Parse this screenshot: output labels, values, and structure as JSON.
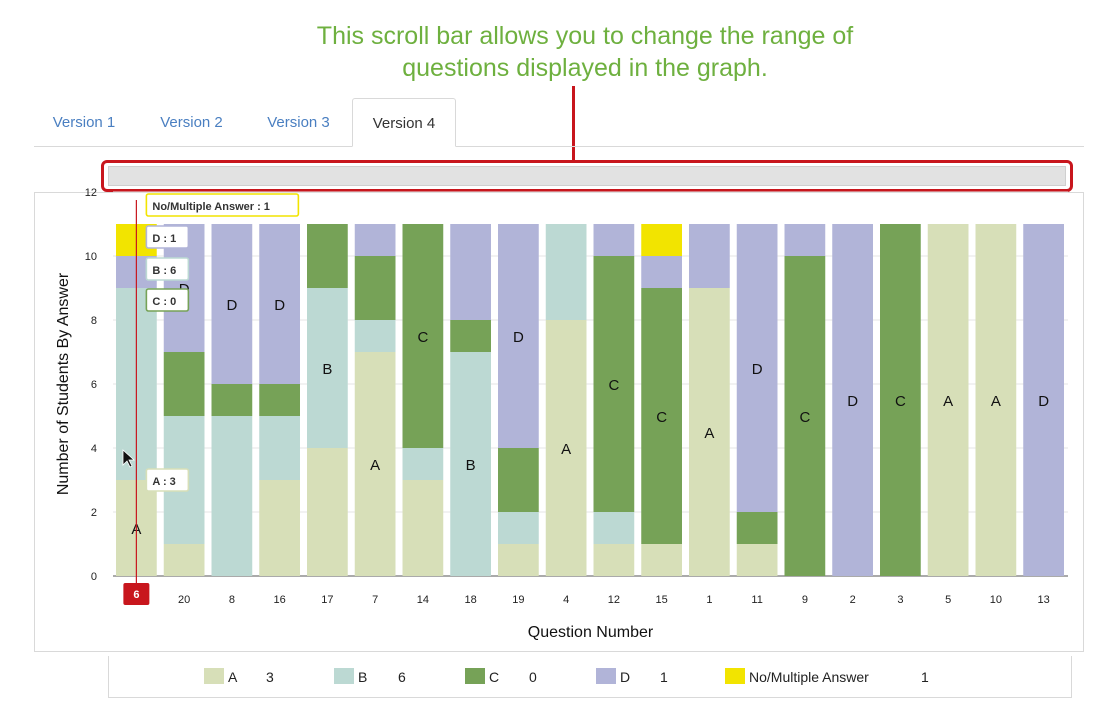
{
  "callout": {
    "line1": "This scroll bar allows you to change the range of",
    "line2": "questions displayed in the graph."
  },
  "tabs": [
    {
      "label": "Version 1",
      "active": false
    },
    {
      "label": "Version 2",
      "active": false
    },
    {
      "label": "Version 3",
      "active": false
    },
    {
      "label": "Version 4",
      "active": true
    }
  ],
  "colors": {
    "A": "#d7dfb8",
    "B": "#bcd9d3",
    "C": "#76a257",
    "D": "#b1b4d8",
    "N": "#f2e400",
    "accent_red": "#c8161d",
    "callout_green": "#6eb03f"
  },
  "chart_data": {
    "type": "bar",
    "stacked": true,
    "xlabel": "Question Number",
    "ylabel": "Number of Students By Answer",
    "ylim": [
      0,
      12
    ],
    "yticks": [
      0,
      2,
      4,
      6,
      8,
      10,
      12
    ],
    "grid": true,
    "categories": [
      "6",
      "20",
      "8",
      "16",
      "17",
      "7",
      "14",
      "18",
      "19",
      "4",
      "12",
      "15",
      "1",
      "11",
      "9",
      "2",
      "3",
      "5",
      "10",
      "13"
    ],
    "correct_answers": [
      "A",
      "D",
      "D",
      "D",
      "B",
      "A",
      "C",
      "B",
      "D",
      "A",
      "C",
      "C",
      "A",
      "D",
      "C",
      "D",
      "C",
      "A",
      "A",
      "D"
    ],
    "series": [
      {
        "key": "A",
        "name": "A",
        "values": [
          3,
          1,
          0,
          3,
          4,
          7,
          3,
          0,
          1,
          8,
          1,
          1,
          9,
          1,
          0,
          0,
          0,
          11,
          11,
          0
        ]
      },
      {
        "key": "B",
        "name": "B",
        "values": [
          6,
          4,
          5,
          2,
          5,
          1,
          1,
          7,
          1,
          3,
          1,
          0,
          0,
          0,
          0,
          0,
          0,
          0,
          0,
          0
        ]
      },
      {
        "key": "C",
        "name": "C",
        "values": [
          0,
          2,
          1,
          1,
          2,
          2,
          7,
          1,
          2,
          0,
          8,
          8,
          0,
          1,
          10,
          0,
          11,
          0,
          0,
          0
        ]
      },
      {
        "key": "D",
        "name": "D",
        "values": [
          1,
          4,
          5,
          5,
          0,
          1,
          0,
          3,
          7,
          0,
          1,
          1,
          2,
          9,
          1,
          11,
          0,
          0,
          0,
          11
        ]
      },
      {
        "key": "N",
        "name": "No/Multiple Answer",
        "values": [
          1,
          0,
          0,
          0,
          0,
          0,
          0,
          0,
          0,
          0,
          0,
          1,
          0,
          0,
          0,
          0,
          0,
          0,
          0,
          0
        ]
      }
    ],
    "selected_category": "6",
    "tooltips": [
      {
        "key": "N",
        "label": "No/Multiple Answer",
        "value": "1"
      },
      {
        "key": "D",
        "label": "D",
        "value": "1"
      },
      {
        "key": "B",
        "label": "B",
        "value": "6"
      },
      {
        "key": "C",
        "label": "C",
        "value": "0"
      },
      {
        "key": "A",
        "label": "A",
        "value": "3"
      }
    ]
  },
  "legend": [
    {
      "key": "A",
      "label": "A",
      "count": "3"
    },
    {
      "key": "B",
      "label": "B",
      "count": "6"
    },
    {
      "key": "C",
      "label": "C",
      "count": "0"
    },
    {
      "key": "D",
      "label": "D",
      "count": "1"
    },
    {
      "key": "N",
      "label": "No/Multiple Answer",
      "count": "1"
    }
  ]
}
